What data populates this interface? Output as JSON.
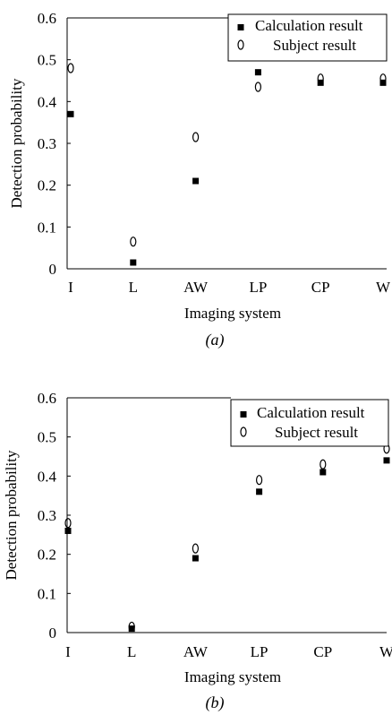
{
  "chart_data": [
    {
      "type": "scatter",
      "panel_label": "(a)",
      "xlabel": "Imaging system",
      "ylabel": "Detection probability",
      "categories": [
        "I",
        "L",
        "AW",
        "LP",
        "CP",
        "W"
      ],
      "ylim": [
        0,
        0.6
      ],
      "yticks": [
        "0",
        "0.1",
        "0.2",
        "0.3",
        "0.4",
        "0.5",
        "0.6"
      ],
      "legend_position": "top-right",
      "series": [
        {
          "name": "Calculation result",
          "marker": "filled-square",
          "values": [
            0.37,
            0.015,
            0.21,
            0.47,
            0.445,
            0.445
          ]
        },
        {
          "name": "Subject result",
          "marker": "open-ellipse",
          "values": [
            0.48,
            0.065,
            0.315,
            0.435,
            0.455,
            0.455
          ]
        }
      ]
    },
    {
      "type": "scatter",
      "panel_label": "(b)",
      "xlabel": "Imaging system",
      "ylabel": "Detection probability",
      "categories": [
        "I",
        "L",
        "AW",
        "LP",
        "CP",
        "W"
      ],
      "ylim": [
        0,
        0.6
      ],
      "yticks": [
        "0",
        "0.1",
        "0.2",
        "0.3",
        "0.4",
        "0.5",
        "0.6"
      ],
      "legend_position": "top-right",
      "series": [
        {
          "name": "Calculation result",
          "marker": "filled-square",
          "values": [
            0.26,
            0.01,
            0.19,
            0.36,
            0.41,
            0.44
          ]
        },
        {
          "name": "Subject result",
          "marker": "open-ellipse",
          "values": [
            0.28,
            0.015,
            0.215,
            0.39,
            0.43,
            0.47
          ]
        }
      ]
    }
  ]
}
